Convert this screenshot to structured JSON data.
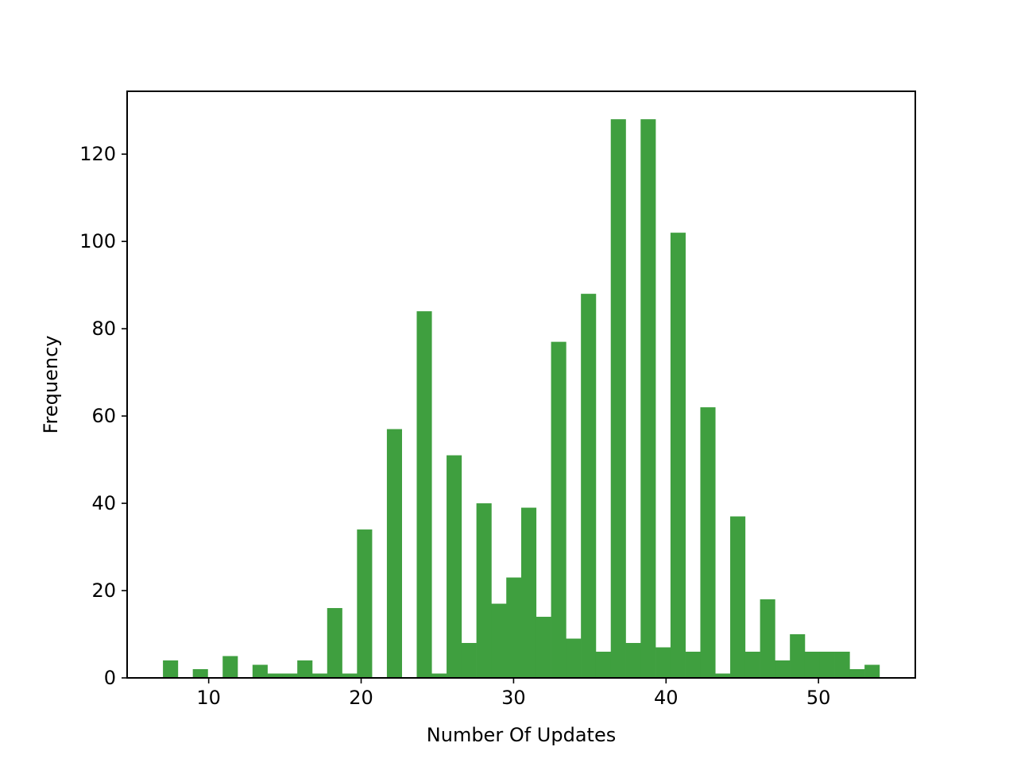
{
  "chart_data": {
    "type": "bar",
    "title": "",
    "xlabel": "Number Of Updates",
    "ylabel": "Frequency",
    "bar_color": "#3f9f3f",
    "grid": false,
    "legend": "none",
    "xlim": [
      4.65,
      56.35
    ],
    "ylim": [
      0,
      134.4
    ],
    "xticks": [
      10,
      20,
      30,
      40,
      50
    ],
    "yticks": [
      0,
      20,
      40,
      60,
      80,
      100,
      120
    ],
    "bin_edges": [
      7,
      7.979,
      8.958,
      9.938,
      10.917,
      11.896,
      12.875,
      13.854,
      14.833,
      15.812,
      16.792,
      17.771,
      18.75,
      19.729,
      20.708,
      21.688,
      22.667,
      23.646,
      24.625,
      25.604,
      26.583,
      27.562,
      28.542,
      29.521,
      30.5,
      31.479,
      32.458,
      33.438,
      34.417,
      35.396,
      36.375,
      37.354,
      38.333,
      39.312,
      40.292,
      41.271,
      42.25,
      43.229,
      44.208,
      45.188,
      46.167,
      47.146,
      48.125,
      49.104,
      50.083,
      51.062,
      52.042,
      53.021,
      54
    ],
    "counts": [
      4,
      0,
      2,
      0,
      5,
      0,
      3,
      1,
      1,
      4,
      1,
      16,
      1,
      34,
      0,
      57,
      0,
      84,
      1,
      51,
      8,
      40,
      17,
      23,
      39,
      14,
      77,
      9,
      88,
      6,
      128,
      8,
      128,
      7,
      102,
      6,
      62,
      1,
      37,
      6,
      18,
      4,
      10,
      6,
      6,
      6,
      2,
      3
    ]
  }
}
